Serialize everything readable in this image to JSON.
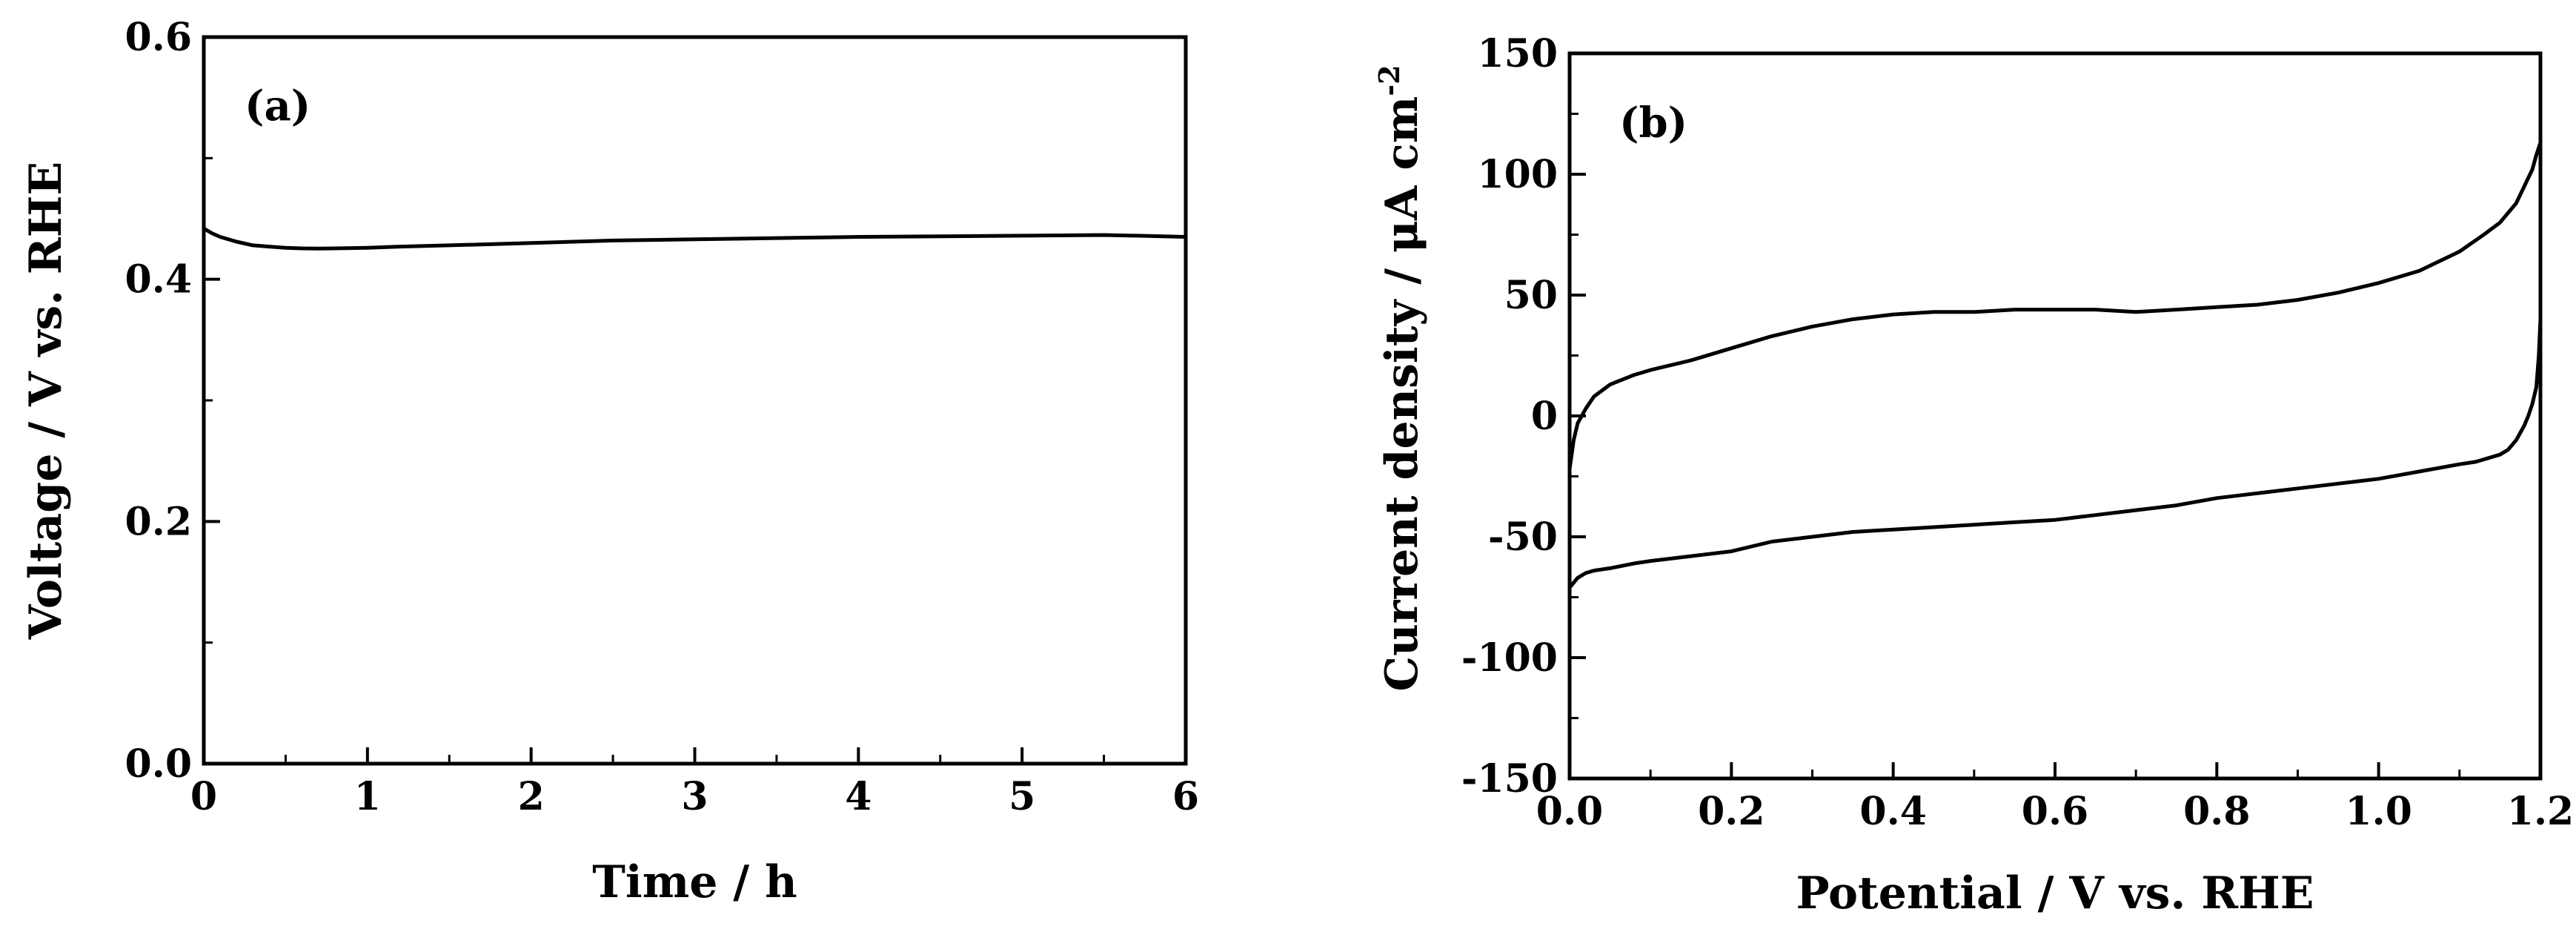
{
  "chart_data": [
    {
      "panel_label": "(a)",
      "type": "line",
      "xlabel": "Time / h",
      "ylabel": "Voltage / V vs. RHE",
      "xlim": [
        0,
        6
      ],
      "ylim": [
        0.0,
        0.6
      ],
      "x_ticks": [
        "0",
        "1",
        "2",
        "3",
        "4",
        "5",
        "6"
      ],
      "y_ticks": [
        "0.0",
        "0.2",
        "0.4",
        "0.6"
      ],
      "x_tick_values": [
        0,
        1,
        2,
        3,
        4,
        5,
        6
      ],
      "y_tick_values": [
        0.0,
        0.2,
        0.4,
        0.6
      ],
      "grid": false,
      "series": [
        {
          "x": [
            0,
            0.05,
            0.1,
            0.2,
            0.3,
            0.4,
            0.5,
            0.6,
            0.7,
            0.8,
            1.0,
            1.2,
            1.5,
            2.0,
            2.5,
            3.0,
            3.5,
            4.0,
            4.5,
            5.0,
            5.5,
            5.7,
            6.0
          ],
          "y": [
            0.442,
            0.438,
            0.435,
            0.431,
            0.428,
            0.427,
            0.426,
            0.4255,
            0.4253,
            0.4255,
            0.426,
            0.427,
            0.428,
            0.43,
            0.432,
            0.433,
            0.434,
            0.435,
            0.4355,
            0.436,
            0.4365,
            0.436,
            0.435
          ]
        }
      ]
    },
    {
      "panel_label": "(b)",
      "type": "line",
      "xlabel": "Potential / V vs. RHE",
      "ylabel": "Current density / μA cm",
      "ylabel_superscript": "-2",
      "xlim": [
        0.0,
        1.2
      ],
      "ylim": [
        -150,
        150
      ],
      "x_ticks": [
        "0.0",
        "0.2",
        "0.4",
        "0.6",
        "0.8",
        "1.0",
        "1.2"
      ],
      "y_ticks": [
        "-150",
        "-100",
        "-50",
        "0",
        "50",
        "100",
        "150"
      ],
      "x_tick_values": [
        0.0,
        0.2,
        0.4,
        0.6,
        0.8,
        1.0,
        1.2
      ],
      "y_tick_values": [
        -150,
        -100,
        -50,
        0,
        50,
        100,
        150
      ],
      "grid": false,
      "series": [
        {
          "x": [
            0.0,
            0.005,
            0.01,
            0.02,
            0.03,
            0.05,
            0.08,
            0.1,
            0.15,
            0.2,
            0.25,
            0.3,
            0.35,
            0.4,
            0.45,
            0.5,
            0.55,
            0.6,
            0.65,
            0.7,
            0.75,
            0.8,
            0.85,
            0.9,
            0.95,
            1.0,
            1.05,
            1.1,
            1.13,
            1.15,
            1.17,
            1.18,
            1.19,
            1.195,
            1.2
          ],
          "y": [
            -22,
            -10,
            -3,
            3,
            8,
            13,
            17,
            19,
            23,
            28,
            33,
            37,
            40,
            42,
            43,
            43,
            44,
            44,
            44,
            43,
            44,
            45,
            46,
            48,
            51,
            55,
            60,
            68,
            75,
            80,
            88,
            95,
            102,
            108,
            113
          ]
        },
        {
          "x": [
            1.2,
            1.198,
            1.195,
            1.19,
            1.185,
            1.18,
            1.17,
            1.16,
            1.15,
            1.12,
            1.1,
            1.05,
            1.0,
            0.95,
            0.9,
            0.85,
            0.8,
            0.75,
            0.7,
            0.65,
            0.6,
            0.55,
            0.5,
            0.45,
            0.4,
            0.35,
            0.3,
            0.25,
            0.2,
            0.15,
            0.1,
            0.08,
            0.05,
            0.03,
            0.02,
            0.01,
            0.005,
            0.0
          ],
          "y": [
            40,
            25,
            12,
            5,
            0,
            -4,
            -10,
            -14,
            -16,
            -19,
            -20,
            -23,
            -26,
            -28,
            -30,
            -32,
            -34,
            -37,
            -39,
            -41,
            -43,
            -44,
            -45,
            -46,
            -47,
            -48,
            -50,
            -52,
            -56,
            -58,
            -60,
            -61,
            -63,
            -64,
            -65,
            -67,
            -69,
            -71
          ]
        }
      ]
    }
  ]
}
